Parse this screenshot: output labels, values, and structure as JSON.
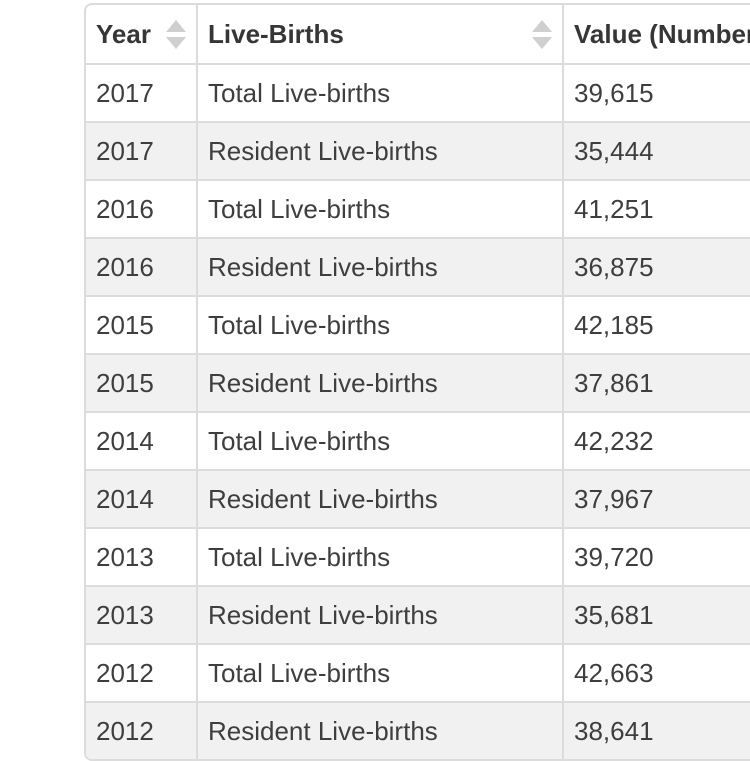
{
  "table": {
    "columns": [
      {
        "label": "Year",
        "sortable": true
      },
      {
        "label": "Live-Births",
        "sortable": true
      },
      {
        "label": "Value (Number)",
        "sortable": true
      }
    ],
    "rows": [
      {
        "year": "2017",
        "category": "Total Live-births",
        "value": "39,615"
      },
      {
        "year": "2017",
        "category": "Resident Live-births",
        "value": "35,444"
      },
      {
        "year": "2016",
        "category": "Total Live-births",
        "value": "41,251"
      },
      {
        "year": "2016",
        "category": "Resident Live-births",
        "value": "36,875"
      },
      {
        "year": "2015",
        "category": "Total Live-births",
        "value": "42,185"
      },
      {
        "year": "2015",
        "category": "Resident Live-births",
        "value": "37,861"
      },
      {
        "year": "2014",
        "category": "Total Live-births",
        "value": "42,232"
      },
      {
        "year": "2014",
        "category": "Resident Live-births",
        "value": "37,967"
      },
      {
        "year": "2013",
        "category": "Total Live-births",
        "value": "39,720"
      },
      {
        "year": "2013",
        "category": "Resident Live-births",
        "value": "35,681"
      },
      {
        "year": "2012",
        "category": "Total Live-births",
        "value": "42,663"
      },
      {
        "year": "2012",
        "category": "Resident Live-births",
        "value": "38,641"
      }
    ]
  },
  "colors": {
    "stripe": "#f1f1f1",
    "border": "#dcdcdc",
    "text": "#3e3e3e",
    "header_text": "#363636",
    "sort_icon": "#cfcfcf",
    "background": "#ffffff"
  }
}
